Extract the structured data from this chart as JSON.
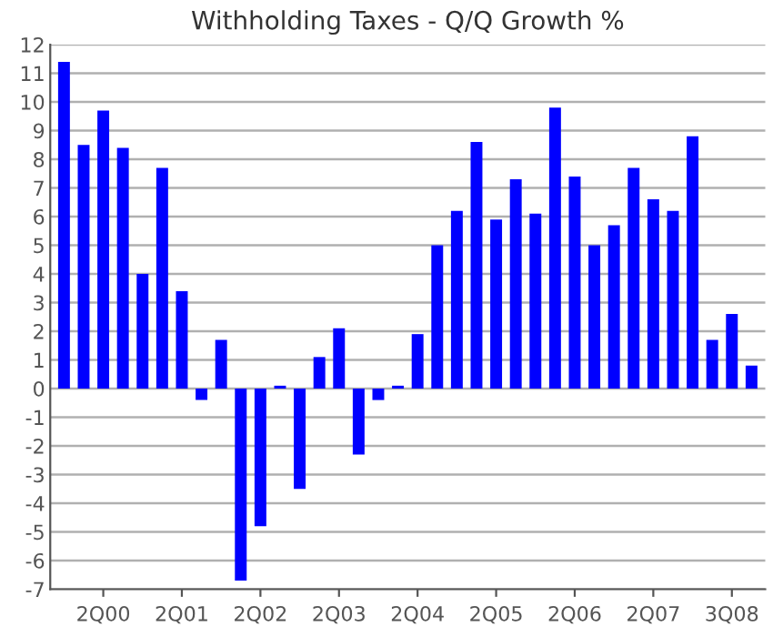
{
  "chart_data": {
    "type": "bar",
    "title": "Withholding Taxes - Q/Q Growth %",
    "categories": [
      null,
      null,
      "2Q00",
      null,
      null,
      null,
      "2Q01",
      null,
      null,
      null,
      "2Q02",
      null,
      null,
      null,
      "2Q03",
      null,
      null,
      null,
      "2Q04",
      null,
      null,
      null,
      "2Q05",
      null,
      null,
      null,
      "2Q06",
      null,
      null,
      null,
      "2Q07",
      null,
      null,
      null,
      "3Q08",
      null
    ],
    "series": [
      {
        "color": "#0000ff",
        "values": [
          11.4,
          8.5,
          9.7,
          8.4,
          4.0,
          7.7,
          3.4,
          -0.4,
          1.7,
          -6.7,
          -4.8,
          0.1,
          -3.5,
          1.1,
          2.1,
          -2.3,
          -0.4,
          0.1,
          1.9,
          5.0,
          6.2,
          8.6,
          5.9,
          7.3,
          6.1,
          9.8,
          7.4,
          5.0,
          5.7,
          7.7,
          6.6,
          6.2,
          8.8,
          1.7,
          2.6,
          0.8
        ]
      }
    ],
    "ylim": [
      -7,
      12
    ],
    "yticks": [
      -7,
      -6,
      -5,
      -4,
      -3,
      -2,
      -1,
      0,
      1,
      2,
      3,
      4,
      5,
      6,
      7,
      8,
      9,
      10,
      11,
      12
    ],
    "grid": "y"
  }
}
